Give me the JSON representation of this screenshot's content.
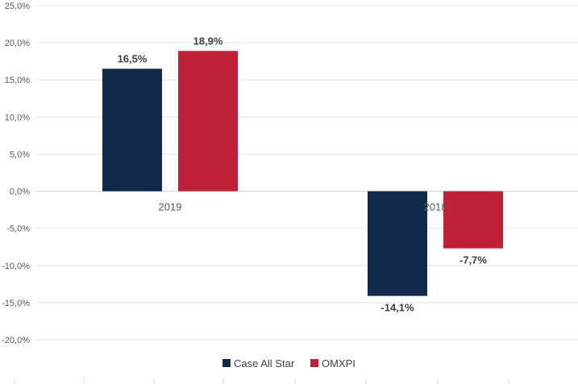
{
  "chart_data": {
    "type": "bar",
    "categories": [
      "2019",
      "2018"
    ],
    "series": [
      {
        "name": "Case All Star",
        "values": [
          16.5,
          -14.1
        ],
        "labels": [
          "16,5%",
          "-14,1%"
        ],
        "color": "#13294b"
      },
      {
        "name": "OMXPI",
        "values": [
          18.9,
          -7.7
        ],
        "labels": [
          "18,9%",
          "-7,7%"
        ],
        "color": "#c0213a"
      }
    ],
    "title": "",
    "xlabel": "",
    "ylabel": "",
    "ylim": [
      -20,
      25
    ],
    "yticks": [
      25,
      20,
      15,
      10,
      5,
      0,
      -5,
      -10,
      -15,
      -20
    ],
    "ytick_labels": [
      "25,0%",
      "20,0%",
      "15,0%",
      "10,0%",
      "5,0%",
      "0,0%",
      "-5,0%",
      "-10,0%",
      "-15,0%",
      "-20,0%"
    ],
    "grid": true,
    "legend_position": "bottom"
  }
}
